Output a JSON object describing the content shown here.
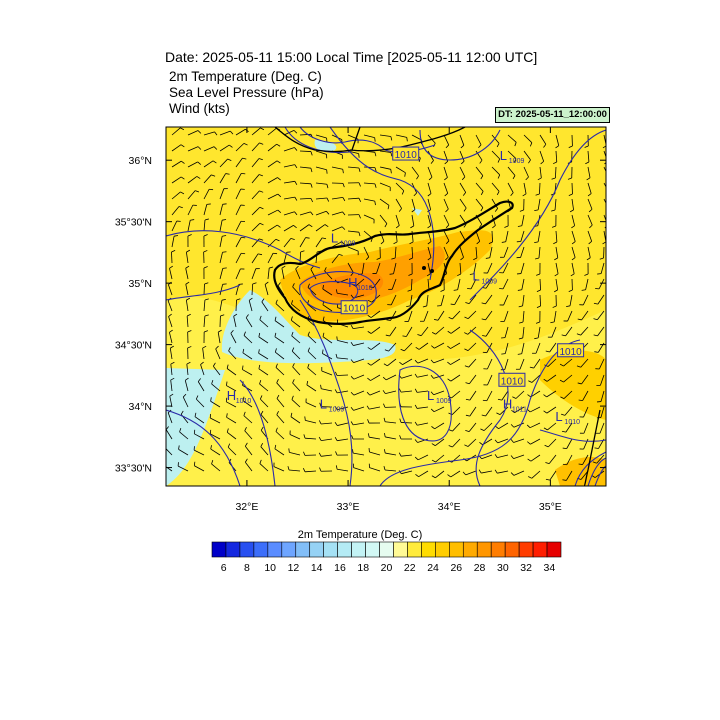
{
  "header": {
    "date_line": "Date: 2025-05-11  15:00 Local Time [2025-05-11  12:00 UTC]",
    "field_1": "2m Temperature (Deg. C)",
    "field_2": "Sea Level Pressure   (hPa)",
    "field_3": "Wind   (kts)",
    "dt_label": "DT: 2025-05-11_12:00:00"
  },
  "map": {
    "lat_labels": [
      "36°N",
      "35°30'N",
      "35°N",
      "34°30'N",
      "34°N",
      "33°30'N"
    ],
    "lat_values": [
      36.0,
      35.5,
      35.0,
      34.5,
      34.0,
      33.5
    ],
    "lon_labels": [
      "32°E",
      "33°E",
      "34°E",
      "35°E"
    ],
    "lon_values": [
      32,
      33,
      34,
      35
    ],
    "lon_range": [
      31.2,
      35.55
    ],
    "lat_range": [
      33.35,
      36.27
    ],
    "pressure_labels": [
      {
        "text": "1010",
        "lon": 33.57,
        "lat": 36.05,
        "boxed": true
      },
      {
        "text": "1010",
        "lon": 33.06,
        "lat": 34.8,
        "boxed": true
      },
      {
        "text": "1010",
        "lon": 35.2,
        "lat": 34.45,
        "boxed": true
      },
      {
        "text": "1010",
        "lon": 34.62,
        "lat": 34.21,
        "boxed": true
      }
    ],
    "highs_lows": [
      {
        "letter": "L",
        "value": "1009",
        "lon": 34.5,
        "lat": 36.0
      },
      {
        "letter": "L",
        "value": "1009",
        "lon": 32.83,
        "lat": 35.33
      },
      {
        "letter": "H",
        "value": "1010",
        "lon": 33.0,
        "lat": 34.97
      },
      {
        "letter": "L",
        "value": "1009",
        "lon": 34.23,
        "lat": 35.02
      },
      {
        "letter": "H",
        "value": "1010",
        "lon": 31.8,
        "lat": 34.05
      },
      {
        "letter": "L",
        "value": "1009",
        "lon": 32.72,
        "lat": 33.98
      },
      {
        "letter": "L",
        "value": "1009",
        "lon": 33.78,
        "lat": 34.05
      },
      {
        "letter": "H",
        "value": "1011",
        "lon": 34.53,
        "lat": 33.98
      },
      {
        "letter": "L",
        "value": "1010",
        "lon": 35.05,
        "lat": 33.88
      }
    ]
  },
  "colorbar": {
    "title": "2m Temperature (Deg. C)",
    "tick_labels": [
      "6",
      "8",
      "10",
      "12",
      "14",
      "16",
      "18",
      "20",
      "22",
      "24",
      "26",
      "28",
      "30",
      "32",
      "34"
    ],
    "colors": [
      "#0000c8",
      "#1428e0",
      "#2850f0",
      "#3c6efa",
      "#5a8cff",
      "#6ea5ff",
      "#82bef8",
      "#96d2f5",
      "#a5e1f5",
      "#b4ebf5",
      "#c3f3f5",
      "#d2f8f5",
      "#e6fcf0",
      "#fffa96",
      "#ffeb3c",
      "#ffdc00",
      "#ffcd00",
      "#ffbe00",
      "#ffaa00",
      "#ff9600",
      "#ff7d00",
      "#ff6400",
      "#ff3c00",
      "#ff1e00",
      "#e60000"
    ],
    "range": [
      5,
      35
    ]
  }
}
